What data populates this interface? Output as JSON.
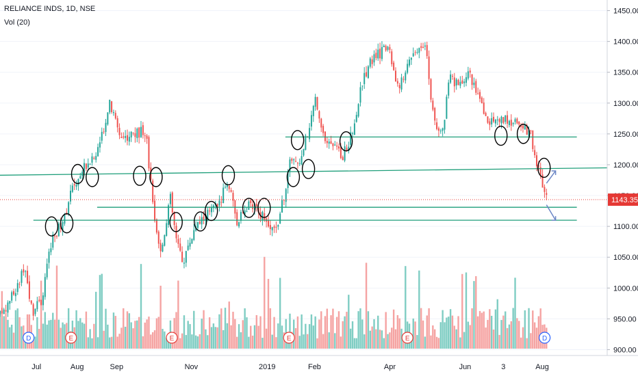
{
  "header": {
    "symbol_line": "RELIANCE INDS, 1D, NSE",
    "indicator_line": "Vol (20)"
  },
  "colors": {
    "up": "#26a69a",
    "down": "#ef5350",
    "vol_up": "#7fcdc3",
    "vol_down": "#f5a3a2",
    "drawing": "#1e9e7a",
    "price_line": "#e53935",
    "grid": "#f0f3fa",
    "axis_text": "#131722"
  },
  "chart_data": {
    "type": "candlestick",
    "title": "RELIANCE INDS, 1D, NSE",
    "ylim": [
      895,
      1465
    ],
    "y_ticks": [
      900,
      950,
      1000,
      1050,
      1100,
      1150,
      1200,
      1250,
      1300,
      1350,
      1400,
      1450
    ],
    "y_tick_labels": [
      "900.00",
      "950.00",
      "1000.00",
      "1050.00",
      "1100.00",
      "1150.00",
      "1200.00",
      "1250.00",
      "1300.00",
      "1350.00",
      "1400.00",
      "1450.00"
    ],
    "last_price": 1143.35,
    "last_price_label": "1143.35",
    "x_ticks": [
      {
        "label": "Jul",
        "t": 0.06
      },
      {
        "label": "Aug",
        "t": 0.127
      },
      {
        "label": "Sep",
        "t": 0.192
      },
      {
        "label": "Nov",
        "t": 0.315
      },
      {
        "label": "2019",
        "t": 0.44
      },
      {
        "label": "Feb",
        "t": 0.518
      },
      {
        "label": "Apr",
        "t": 0.642
      },
      {
        "label": "Jun",
        "t": 0.766
      },
      {
        "label": "3",
        "t": 0.829
      },
      {
        "label": "Aug",
        "t": 0.893
      }
    ],
    "price_path": [
      [
        0.0,
        955
      ],
      [
        0.025,
        995
      ],
      [
        0.04,
        1030
      ],
      [
        0.055,
        960
      ],
      [
        0.07,
        985
      ],
      [
        0.085,
        1080
      ],
      [
        0.1,
        1100
      ],
      [
        0.12,
        1165
      ],
      [
        0.14,
        1200
      ],
      [
        0.16,
        1215
      ],
      [
        0.18,
        1300
      ],
      [
        0.2,
        1245
      ],
      [
        0.22,
        1250
      ],
      [
        0.24,
        1255
      ],
      [
        0.255,
        1100
      ],
      [
        0.265,
        1055
      ],
      [
        0.28,
        1150
      ],
      [
        0.29,
        1080
      ],
      [
        0.3,
        1040
      ],
      [
        0.32,
        1095
      ],
      [
        0.34,
        1120
      ],
      [
        0.36,
        1135
      ],
      [
        0.375,
        1175
      ],
      [
        0.39,
        1105
      ],
      [
        0.41,
        1135
      ],
      [
        0.43,
        1120
      ],
      [
        0.445,
        1095
      ],
      [
        0.455,
        1095
      ],
      [
        0.47,
        1160
      ],
      [
        0.48,
        1215
      ],
      [
        0.49,
        1195
      ],
      [
        0.5,
        1225
      ],
      [
        0.52,
        1310
      ],
      [
        0.535,
        1240
      ],
      [
        0.55,
        1225
      ],
      [
        0.565,
        1215
      ],
      [
        0.58,
        1250
      ],
      [
        0.595,
        1330
      ],
      [
        0.61,
        1370
      ],
      [
        0.625,
        1380
      ],
      [
        0.64,
        1395
      ],
      [
        0.65,
        1340
      ],
      [
        0.66,
        1330
      ],
      [
        0.675,
        1375
      ],
      [
        0.69,
        1395
      ],
      [
        0.7,
        1400
      ],
      [
        0.71,
        1310
      ],
      [
        0.72,
        1245
      ],
      [
        0.73,
        1255
      ],
      [
        0.74,
        1345
      ],
      [
        0.755,
        1325
      ],
      [
        0.77,
        1355
      ],
      [
        0.785,
        1320
      ],
      [
        0.8,
        1275
      ],
      [
        0.815,
        1270
      ],
      [
        0.83,
        1275
      ],
      [
        0.845,
        1265
      ],
      [
        0.86,
        1265
      ],
      [
        0.875,
        1245
      ],
      [
        0.885,
        1200
      ],
      [
        0.895,
        1165
      ],
      [
        0.9,
        1143
      ]
    ],
    "horizontal_levels": [
      {
        "name": "resistance-upper",
        "from": [
          0.47,
          1245
        ],
        "to": [
          0.95,
          1245
        ]
      },
      {
        "name": "trendline",
        "from": [
          0.0,
          1183
        ],
        "to": [
          1.0,
          1195
        ]
      },
      {
        "name": "level-1130",
        "from": [
          0.16,
          1131
        ],
        "to": [
          0.95,
          1131
        ]
      },
      {
        "name": "level-1110",
        "from": [
          0.055,
          1110
        ],
        "to": [
          0.95,
          1110
        ]
      }
    ],
    "circles": [
      {
        "t": 0.085,
        "v": 1100
      },
      {
        "t": 0.11,
        "v": 1105
      },
      {
        "t": 0.128,
        "v": 1185
      },
      {
        "t": 0.152,
        "v": 1180
      },
      {
        "t": 0.23,
        "v": 1182
      },
      {
        "t": 0.257,
        "v": 1180
      },
      {
        "t": 0.29,
        "v": 1107
      },
      {
        "t": 0.33,
        "v": 1108
      },
      {
        "t": 0.348,
        "v": 1125
      },
      {
        "t": 0.376,
        "v": 1183
      },
      {
        "t": 0.41,
        "v": 1130
      },
      {
        "t": 0.435,
        "v": 1130
      },
      {
        "t": 0.483,
        "v": 1180
      },
      {
        "t": 0.49,
        "v": 1240
      },
      {
        "t": 0.508,
        "v": 1193
      },
      {
        "t": 0.57,
        "v": 1238
      },
      {
        "t": 0.825,
        "v": 1247
      },
      {
        "t": 0.862,
        "v": 1250
      },
      {
        "t": 0.896,
        "v": 1195
      }
    ],
    "event_markers": [
      {
        "label": "D",
        "t": 0.047
      },
      {
        "label": "E",
        "t": 0.117
      },
      {
        "label": "E",
        "t": 0.283
      },
      {
        "label": "E",
        "t": 0.476
      },
      {
        "label": "E",
        "t": 0.671
      },
      {
        "label": "D",
        "t": 0.897
      }
    ]
  }
}
